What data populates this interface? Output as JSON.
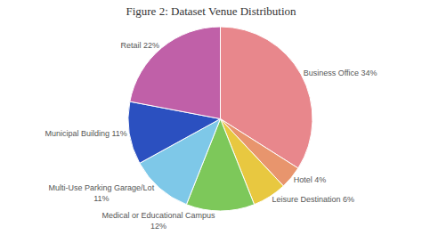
{
  "chart_data": {
    "type": "pie",
    "title": "Figure 2: Dataset Venue Distribution",
    "categories": [
      "Business Office 34%",
      "Hotel 4%",
      "Leisure Destination 6%",
      "Medical or Educational Campus\n12%",
      "Multi-Use Parking Garage/Lot\n11%",
      "Municipal Building 11%",
      "Retail 22%"
    ],
    "values": [
      34,
      4,
      6,
      12,
      11,
      11,
      22
    ],
    "colors": [
      "#E8878C",
      "#E8956D",
      "#E8C840",
      "#7DC85A",
      "#7EC8E8",
      "#2B50C0",
      "#C060A8"
    ]
  }
}
